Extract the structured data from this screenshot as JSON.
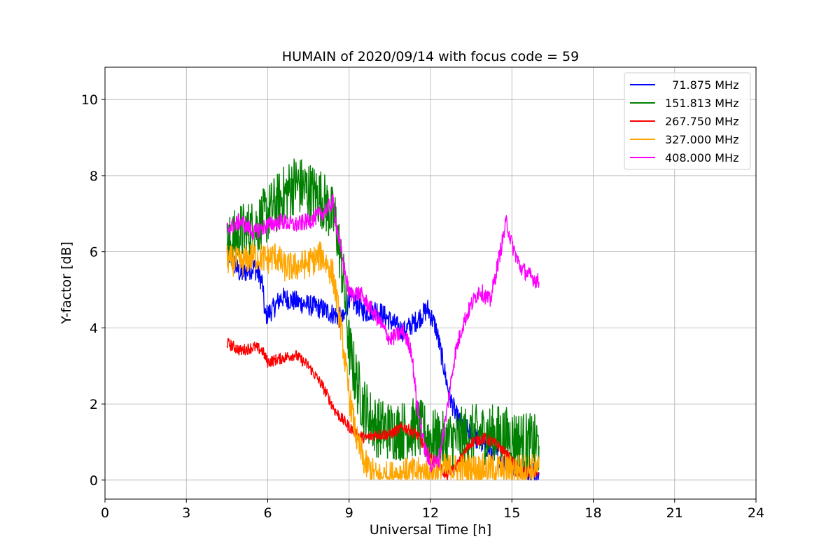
{
  "chart_data": {
    "type": "line",
    "title": "HUMAIN of 2020/09/14 with focus code = 59",
    "xlabel": "Universal Time [h]",
    "ylabel": "Y-factor [dB]",
    "xlim": [
      0,
      24
    ],
    "ylim": [
      -0.5,
      10.85
    ],
    "xticks": [
      "0",
      "3",
      "6",
      "9",
      "12",
      "15",
      "18",
      "21",
      "24"
    ],
    "yticks": [
      "0",
      "2",
      "4",
      "6",
      "8",
      "10"
    ],
    "grid": true,
    "legend_position": "top-right",
    "series": [
      {
        "name": "  71.875 MHz",
        "color": "#0000ff",
        "x": [
          4.5,
          5.0,
          5.5,
          5.8,
          5.9,
          6.2,
          6.5,
          7.0,
          7.5,
          8.0,
          8.3,
          8.6,
          8.8,
          9.0,
          9.3,
          9.6,
          10.0,
          10.5,
          11.0,
          11.5,
          11.9,
          12.2,
          12.4,
          12.7,
          13.0,
          13.5,
          14.0,
          14.5,
          15.0,
          15.5,
          16.0
        ],
        "y": [
          6.0,
          5.4,
          5.6,
          5.2,
          4.3,
          4.5,
          4.8,
          4.7,
          4.6,
          4.5,
          4.4,
          4.3,
          4.2,
          4.8,
          4.6,
          4.4,
          4.5,
          4.2,
          3.9,
          4.2,
          4.5,
          4.0,
          3.3,
          2.2,
          1.6,
          1.2,
          0.9,
          0.6,
          0.4,
          0.3,
          0.2
        ],
        "noise": 0.28
      },
      {
        "name": "151.813 MHz",
        "color": "#008000",
        "x": [
          4.5,
          5.0,
          5.5,
          6.0,
          6.5,
          7.0,
          7.5,
          8.0,
          8.5,
          8.8,
          9.0,
          9.2,
          9.5,
          9.8,
          10.0,
          10.5,
          11.0,
          11.5,
          12.0,
          12.5,
          13.0,
          13.5,
          14.0,
          14.5,
          15.0,
          15.5,
          16.0
        ],
        "y": [
          6.1,
          6.5,
          6.6,
          7.0,
          7.4,
          7.8,
          7.6,
          7.4,
          6.8,
          5.2,
          3.5,
          2.8,
          2.0,
          1.6,
          1.4,
          1.3,
          1.3,
          1.4,
          1.1,
          1.0,
          1.1,
          1.2,
          1.2,
          1.2,
          1.1,
          1.0,
          0.9
        ],
        "noise": 0.8
      },
      {
        "name": "267.750 MHz",
        "color": "#ff0000",
        "x": [
          4.5,
          5.0,
          5.5,
          5.8,
          6.0,
          6.5,
          7.0,
          7.5,
          8.0,
          8.5,
          9.0,
          9.3,
          9.6,
          10.0,
          10.5,
          11.0,
          11.5,
          12.0,
          12.3,
          12.6,
          13.0,
          13.5,
          14.0,
          14.5,
          15.0,
          15.3,
          15.6,
          16.0
        ],
        "y": [
          3.6,
          3.4,
          3.5,
          3.4,
          3.1,
          3.2,
          3.3,
          3.0,
          2.5,
          1.8,
          1.4,
          1.2,
          1.1,
          1.2,
          1.2,
          1.4,
          1.2,
          0.6,
          0.4,
          0.1,
          0.4,
          1.0,
          1.1,
          0.9,
          0.5,
          0.2,
          0.2,
          0.2
        ],
        "noise": 0.15
      },
      {
        "name": "327.000 MHz",
        "color": "#ffa500",
        "x": [
          4.5,
          5.0,
          5.5,
          6.0,
          6.3,
          6.6,
          7.0,
          7.5,
          8.0,
          8.4,
          8.7,
          9.0,
          9.3,
          9.6,
          10.0,
          10.5,
          11.0,
          11.5,
          12.0,
          12.5,
          13.0,
          13.5,
          14.0,
          14.5,
          15.0,
          15.5,
          16.0
        ],
        "y": [
          5.8,
          5.7,
          5.9,
          5.8,
          5.9,
          5.6,
          5.6,
          5.7,
          5.9,
          5.4,
          4.0,
          2.2,
          1.0,
          0.4,
          0.1,
          0.1,
          0.2,
          0.2,
          0.2,
          0.3,
          0.3,
          0.3,
          0.3,
          0.3,
          0.3,
          0.3,
          0.3
        ],
        "noise": 0.4
      },
      {
        "name": "408.000 MHz",
        "color": "#ff00ff",
        "x": [
          4.5,
          5.0,
          5.5,
          6.0,
          6.5,
          7.0,
          7.5,
          8.0,
          8.4,
          8.7,
          9.0,
          9.4,
          9.8,
          10.0,
          10.5,
          11.0,
          11.3,
          11.5,
          11.8,
          12.0,
          12.3,
          12.6,
          12.9,
          13.2,
          13.5,
          13.8,
          14.2,
          14.6,
          14.8,
          15.0,
          15.3,
          15.6,
          16.0
        ],
        "y": [
          6.6,
          6.8,
          6.5,
          6.7,
          6.8,
          6.7,
          6.8,
          7.0,
          7.3,
          6.0,
          4.9,
          4.9,
          4.5,
          4.3,
          3.7,
          3.9,
          3.4,
          2.0,
          0.8,
          0.4,
          0.5,
          1.8,
          3.3,
          4.1,
          4.6,
          5.0,
          4.7,
          6.1,
          6.8,
          6.2,
          5.6,
          5.4,
          5.2
        ],
        "noise": 0.22
      }
    ]
  }
}
